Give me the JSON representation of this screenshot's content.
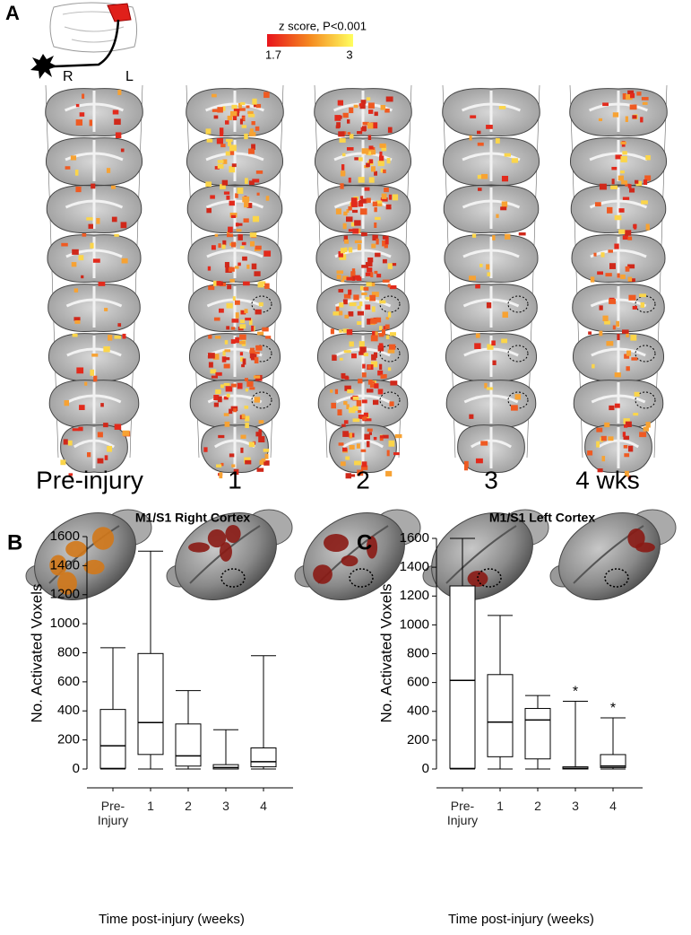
{
  "panel_a": {
    "label": "A",
    "colorbar": {
      "title": "z score, P<0.001",
      "min": 1.7,
      "max": 3
    },
    "side_labels": [
      "R",
      "L"
    ],
    "columns": [
      "Pre-injury",
      "1",
      "2",
      "3",
      "4 wks"
    ]
  },
  "chart_data": [
    {
      "type": "box",
      "panel": "B",
      "title": "M1/S1 Right Cortex",
      "y_label": "No. Activated Voxels",
      "x_label": "Time post-injury (weeks)",
      "categories": [
        "Pre-\nInjury",
        "1",
        "2",
        "3",
        "4"
      ],
      "color": "#000000",
      "boxes": [
        {
          "min": 0,
          "q1": 5,
          "median": 160,
          "q3": 410,
          "max": 835
        },
        {
          "min": 0,
          "q1": 100,
          "median": 320,
          "q3": 795,
          "max": 1500
        },
        {
          "min": 0,
          "q1": 20,
          "median": 90,
          "q3": 310,
          "max": 540
        },
        {
          "min": 0,
          "q1": 0,
          "median": 10,
          "q3": 30,
          "max": 270
        },
        {
          "min": 0,
          "q1": 15,
          "median": 50,
          "q3": 145,
          "max": 780
        }
      ],
      "ylim": [
        0,
        1600
      ],
      "yticks": [
        0,
        200,
        400,
        600,
        800,
        1000,
        1200,
        1400,
        1600
      ]
    },
    {
      "type": "box",
      "panel": "C",
      "title": "M1/S1 Left Cortex",
      "y_label": "No. Activated Voxels",
      "x_label": "Time post-injury (weeks)",
      "categories": [
        "Pre-\nInjury",
        "1",
        "2",
        "3",
        "4"
      ],
      "color": "#000000",
      "boxes": [
        {
          "min": 0,
          "q1": 5,
          "median": 615,
          "q3": 1270,
          "max": 1600
        },
        {
          "min": 0,
          "q1": 85,
          "median": 325,
          "q3": 655,
          "max": 1065
        },
        {
          "min": 0,
          "q1": 70,
          "median": 340,
          "q3": 420,
          "max": 510
        },
        {
          "min": 0,
          "q1": 0,
          "median": 5,
          "q3": 15,
          "max": 470
        },
        {
          "min": 0,
          "q1": 10,
          "median": 20,
          "q3": 100,
          "max": 355
        }
      ],
      "annotations": [
        {
          "category": "3",
          "text": "*"
        },
        {
          "category": "4",
          "text": "*"
        }
      ],
      "ylim": [
        0,
        1600
      ],
      "yticks": [
        0,
        200,
        400,
        600,
        800,
        1000,
        1200,
        1400,
        1600
      ]
    }
  ]
}
